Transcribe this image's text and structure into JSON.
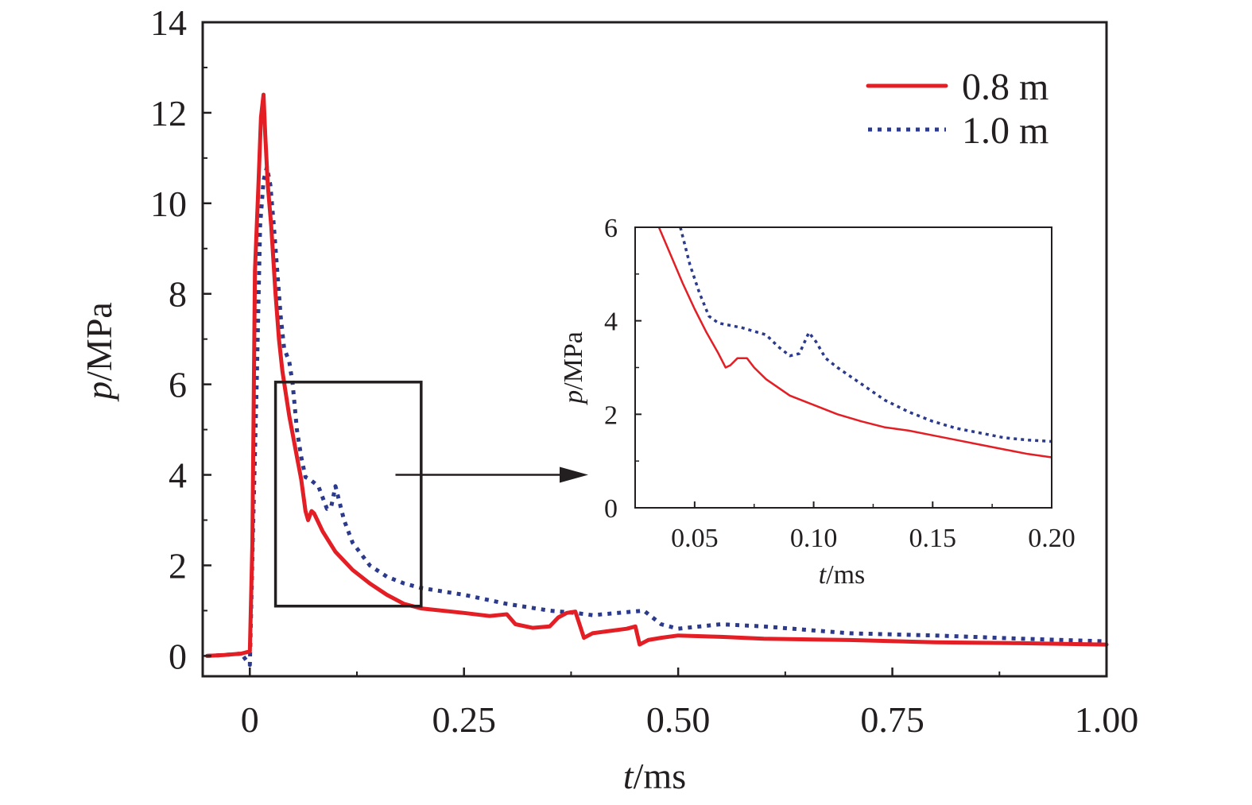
{
  "chart_data": [
    {
      "type": "line",
      "xlabel": {
        "var": "t",
        "unit": "/ms"
      },
      "ylabel": {
        "var": "p",
        "unit": "/MPa"
      },
      "xlim": [
        -0.055,
        1.0
      ],
      "ylim": [
        -0.45,
        14
      ],
      "x_ticks": [
        0,
        0.25,
        0.5,
        0.75,
        1.0
      ],
      "x_tick_labels": [
        "0",
        "0.25",
        "0.50",
        "0.75",
        "1.00"
      ],
      "y_ticks": [
        0,
        2,
        4,
        6,
        8,
        10,
        12,
        14
      ],
      "y_tick_labels": [
        "0",
        "2",
        "4",
        "6",
        "8",
        "10",
        "12",
        "14"
      ],
      "grid": false,
      "legend_position": "top-right",
      "series": [
        {
          "name": "0.8 m",
          "color": "#e31e24",
          "style": "solid",
          "points": [
            [
              -0.05,
              0.0
            ],
            [
              -0.03,
              0.02
            ],
            [
              -0.01,
              0.05
            ],
            [
              0.0,
              0.1
            ],
            [
              0.003,
              2.5
            ],
            [
              0.006,
              8.5
            ],
            [
              0.01,
              10.4
            ],
            [
              0.013,
              11.9
            ],
            [
              0.016,
              12.4
            ],
            [
              0.018,
              11.5
            ],
            [
              0.021,
              10.4
            ],
            [
              0.025,
              9.5
            ],
            [
              0.03,
              8.0
            ],
            [
              0.034,
              7.0
            ],
            [
              0.038,
              6.3
            ],
            [
              0.042,
              5.8
            ],
            [
              0.046,
              5.3
            ],
            [
              0.05,
              4.9
            ],
            [
              0.055,
              4.4
            ],
            [
              0.06,
              3.9
            ],
            [
              0.065,
              3.2
            ],
            [
              0.068,
              3.0
            ],
            [
              0.072,
              3.2
            ],
            [
              0.075,
              3.15
            ],
            [
              0.085,
              2.75
            ],
            [
              0.1,
              2.3
            ],
            [
              0.12,
              1.9
            ],
            [
              0.14,
              1.6
            ],
            [
              0.16,
              1.35
            ],
            [
              0.18,
              1.15
            ],
            [
              0.2,
              1.05
            ],
            [
              0.25,
              0.95
            ],
            [
              0.28,
              0.88
            ],
            [
              0.3,
              0.92
            ],
            [
              0.31,
              0.7
            ],
            [
              0.33,
              0.62
            ],
            [
              0.35,
              0.65
            ],
            [
              0.36,
              0.85
            ],
            [
              0.37,
              0.95
            ],
            [
              0.38,
              0.98
            ],
            [
              0.39,
              0.4
            ],
            [
              0.4,
              0.5
            ],
            [
              0.42,
              0.55
            ],
            [
              0.44,
              0.6
            ],
            [
              0.45,
              0.65
            ],
            [
              0.455,
              0.25
            ],
            [
              0.465,
              0.35
            ],
            [
              0.48,
              0.4
            ],
            [
              0.5,
              0.45
            ],
            [
              0.55,
              0.42
            ],
            [
              0.6,
              0.38
            ],
            [
              0.7,
              0.35
            ],
            [
              0.8,
              0.3
            ],
            [
              0.9,
              0.28
            ],
            [
              1.0,
              0.25
            ]
          ]
        },
        {
          "name": "1.0 m",
          "color": "#2b3a8c",
          "style": "dotted",
          "points": [
            [
              -0.05,
              0.0
            ],
            [
              -0.03,
              0.02
            ],
            [
              -0.01,
              0.05
            ],
            [
              0.0,
              -0.2
            ],
            [
              0.004,
              3.0
            ],
            [
              0.008,
              6.0
            ],
            [
              0.012,
              9.5
            ],
            [
              0.016,
              10.5
            ],
            [
              0.02,
              10.8
            ],
            [
              0.024,
              10.4
            ],
            [
              0.028,
              9.5
            ],
            [
              0.032,
              8.5
            ],
            [
              0.036,
              7.5
            ],
            [
              0.04,
              6.8
            ],
            [
              0.046,
              6.5
            ],
            [
              0.05,
              6.0
            ],
            [
              0.055,
              5.0
            ],
            [
              0.06,
              4.4
            ],
            [
              0.065,
              3.95
            ],
            [
              0.07,
              3.9
            ],
            [
              0.08,
              3.75
            ],
            [
              0.09,
              3.25
            ],
            [
              0.095,
              3.3
            ],
            [
              0.1,
              3.75
            ],
            [
              0.11,
              3.0
            ],
            [
              0.12,
              2.5
            ],
            [
              0.14,
              2.0
            ],
            [
              0.16,
              1.75
            ],
            [
              0.18,
              1.6
            ],
            [
              0.2,
              1.5
            ],
            [
              0.25,
              1.35
            ],
            [
              0.3,
              1.15
            ],
            [
              0.35,
              1.0
            ],
            [
              0.38,
              0.95
            ],
            [
              0.4,
              0.9
            ],
            [
              0.43,
              0.95
            ],
            [
              0.46,
              1.0
            ],
            [
              0.48,
              0.7
            ],
            [
              0.5,
              0.6
            ],
            [
              0.55,
              0.7
            ],
            [
              0.6,
              0.65
            ],
            [
              0.7,
              0.5
            ],
            [
              0.8,
              0.45
            ],
            [
              0.9,
              0.38
            ],
            [
              1.0,
              0.32
            ]
          ]
        }
      ],
      "annotations": [
        {
          "type": "zoom-box",
          "x_range": [
            0.03,
            0.2
          ],
          "y_range": [
            1.1,
            6.05
          ]
        },
        {
          "type": "arrow",
          "from": [
            0.17,
            4.0
          ],
          "to_inset": true
        }
      ]
    },
    {
      "type": "line",
      "role": "inset",
      "xlabel": {
        "var": "t",
        "unit": "/ms"
      },
      "ylabel": {
        "var": "p",
        "unit": "/MPa"
      },
      "xlim": [
        0.025,
        0.2
      ],
      "ylim": [
        0,
        6
      ],
      "x_ticks": [
        0.05,
        0.1,
        0.15,
        0.2
      ],
      "x_tick_labels": [
        "0.05",
        "0.10",
        "0.15",
        "0.20"
      ],
      "y_ticks": [
        0,
        2,
        4,
        6
      ],
      "y_tick_labels": [
        "0",
        "2",
        "4",
        "6"
      ],
      "grid": false,
      "series": [
        {
          "name": "0.8 m",
          "color": "#e31e24",
          "style": "solid",
          "points": [
            [
              0.035,
              6.0
            ],
            [
              0.04,
              5.4
            ],
            [
              0.045,
              4.8
            ],
            [
              0.05,
              4.25
            ],
            [
              0.055,
              3.75
            ],
            [
              0.06,
              3.3
            ],
            [
              0.063,
              3.0
            ],
            [
              0.065,
              3.05
            ],
            [
              0.068,
              3.2
            ],
            [
              0.072,
              3.2
            ],
            [
              0.075,
              3.0
            ],
            [
              0.08,
              2.75
            ],
            [
              0.09,
              2.4
            ],
            [
              0.1,
              2.2
            ],
            [
              0.11,
              2.0
            ],
            [
              0.12,
              1.85
            ],
            [
              0.13,
              1.72
            ],
            [
              0.14,
              1.65
            ],
            [
              0.15,
              1.55
            ],
            [
              0.16,
              1.45
            ],
            [
              0.17,
              1.35
            ],
            [
              0.18,
              1.25
            ],
            [
              0.19,
              1.15
            ],
            [
              0.2,
              1.08
            ]
          ]
        },
        {
          "name": "1.0 m",
          "color": "#2b3a8c",
          "style": "dotted",
          "points": [
            [
              0.044,
              6.0
            ],
            [
              0.048,
              5.2
            ],
            [
              0.052,
              4.6
            ],
            [
              0.056,
              4.1
            ],
            [
              0.06,
              3.95
            ],
            [
              0.065,
              3.9
            ],
            [
              0.07,
              3.85
            ],
            [
              0.08,
              3.7
            ],
            [
              0.085,
              3.45
            ],
            [
              0.09,
              3.25
            ],
            [
              0.094,
              3.3
            ],
            [
              0.098,
              3.75
            ],
            [
              0.101,
              3.55
            ],
            [
              0.105,
              3.2
            ],
            [
              0.11,
              3.0
            ],
            [
              0.12,
              2.65
            ],
            [
              0.13,
              2.3
            ],
            [
              0.14,
              2.05
            ],
            [
              0.15,
              1.85
            ],
            [
              0.16,
              1.7
            ],
            [
              0.17,
              1.6
            ],
            [
              0.18,
              1.5
            ],
            [
              0.19,
              1.45
            ],
            [
              0.2,
              1.42
            ]
          ]
        }
      ]
    }
  ],
  "legend": {
    "items": [
      {
        "label": "0.8 m",
        "color": "#e31e24",
        "style": "solid"
      },
      {
        "label": "1.0 m",
        "color": "#2b3a8c",
        "style": "dotted"
      }
    ]
  }
}
